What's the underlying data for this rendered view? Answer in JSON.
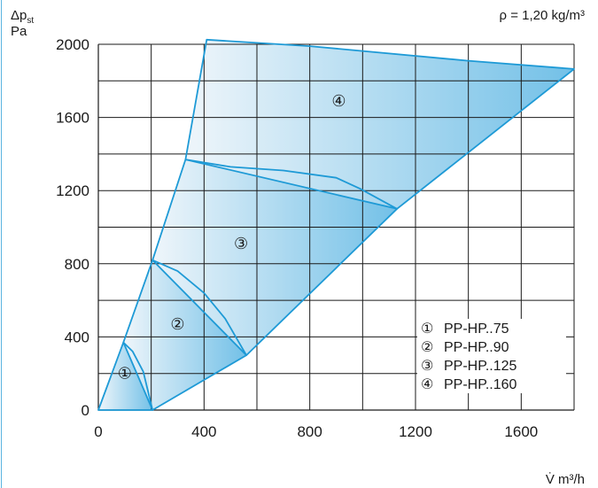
{
  "chart_data": {
    "type": "area",
    "density_note": "ρ = 1,20 kg/m³",
    "ylabel": "Δp",
    "ylabel_sub": "st",
    "yunit": "Pa",
    "xlabel": "V̇ m³/h",
    "xlim": [
      0,
      1800
    ],
    "ylim": [
      0,
      2000
    ],
    "xticks": [
      0,
      400,
      800,
      1200,
      1600
    ],
    "yticks": [
      0,
      400,
      800,
      1200,
      1600,
      2000
    ],
    "grid": true,
    "legend_position": "bottom-right",
    "series": [
      {
        "name": "PP-HP..75",
        "marker": "①",
        "boundary": [
          [
            0,
            0
          ],
          [
            95,
            370
          ],
          [
            130,
            320
          ],
          [
            170,
            210
          ],
          [
            205,
            0
          ]
        ],
        "label_at": [
          100,
          200
        ]
      },
      {
        "name": "PP-HP..90",
        "marker": "②",
        "boundary": [
          [
            95,
            370
          ],
          [
            205,
            820
          ],
          [
            300,
            760
          ],
          [
            400,
            640
          ],
          [
            480,
            500
          ],
          [
            560,
            300
          ],
          [
            205,
            0
          ]
        ],
        "label_at": [
          300,
          470
        ]
      },
      {
        "name": "PP-HP..125",
        "marker": "③",
        "boundary": [
          [
            205,
            820
          ],
          [
            330,
            1370
          ],
          [
            500,
            1330
          ],
          [
            700,
            1310
          ],
          [
            900,
            1270
          ],
          [
            990,
            1210
          ],
          [
            1130,
            1100
          ],
          [
            560,
            300
          ]
        ],
        "label_at": [
          540,
          910
        ]
      },
      {
        "name": "PP-HP..160",
        "marker": "④",
        "boundary": [
          [
            330,
            1370
          ],
          [
            410,
            2025
          ],
          [
            800,
            1990
          ],
          [
            1400,
            1910
          ],
          [
            1800,
            1865
          ],
          [
            1130,
            1100
          ]
        ],
        "label_at": [
          910,
          1690
        ]
      }
    ]
  }
}
